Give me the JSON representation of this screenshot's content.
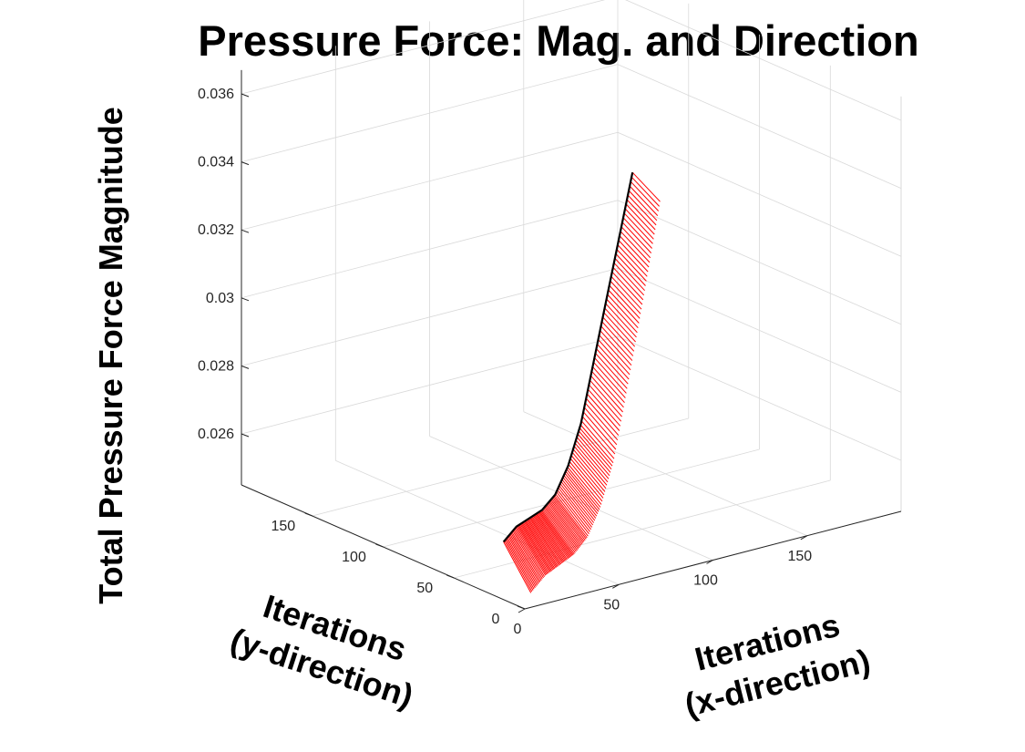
{
  "chart_data": {
    "type": "3d-line",
    "title": "Pressure Force: Mag. and Direction",
    "xlabel": [
      "Iterations",
      "(x-direction)"
    ],
    "ylabel": [
      "Iterations",
      "(y-direction)"
    ],
    "zlabel": "Total Pressure Force Magnitude",
    "grid": true,
    "x_ticks": [
      0,
      50,
      100,
      150
    ],
    "y_ticks": [
      0,
      50,
      100,
      150
    ],
    "z_ticks": [
      {
        "value": 0.026,
        "label": "0.026"
      },
      {
        "value": 0.028,
        "label": "0.028"
      },
      {
        "value": 0.03,
        "label": "0.03"
      },
      {
        "value": 0.032,
        "label": "0.032"
      },
      {
        "value": 0.034,
        "label": "0.034"
      },
      {
        "value": 0.036,
        "label": "0.036"
      }
    ],
    "xlim": [
      0,
      200
    ],
    "ylim": [
      0,
      200
    ],
    "zlim": [
      0.0245,
      0.0367
    ],
    "colors": {
      "magnitude_curve": "#000000",
      "direction_vectors": "#ff0000",
      "grid": "#d9d9d9",
      "axis": "#262626"
    },
    "magnitude_curve": {
      "x": [
        0,
        0,
        0,
        0,
        0,
        0,
        0,
        0,
        0,
        0,
        0
      ],
      "y": [
        0,
        0,
        0,
        0,
        0,
        0,
        0,
        0,
        0,
        0,
        0
      ],
      "z": [
        0.0262,
        0.0266,
        0.0268,
        0.027,
        0.0274,
        0.0282,
        0.0294,
        0.0312,
        0.033,
        0.0348,
        0.0366
      ]
    },
    "direction_vectors": {
      "z_start": 0.0262,
      "z_end": 0.0366,
      "x_offset": [
        6,
        8,
        12,
        16,
        20
      ],
      "y_offset": [
        -20,
        -20,
        -10,
        -2,
        2
      ]
    }
  }
}
